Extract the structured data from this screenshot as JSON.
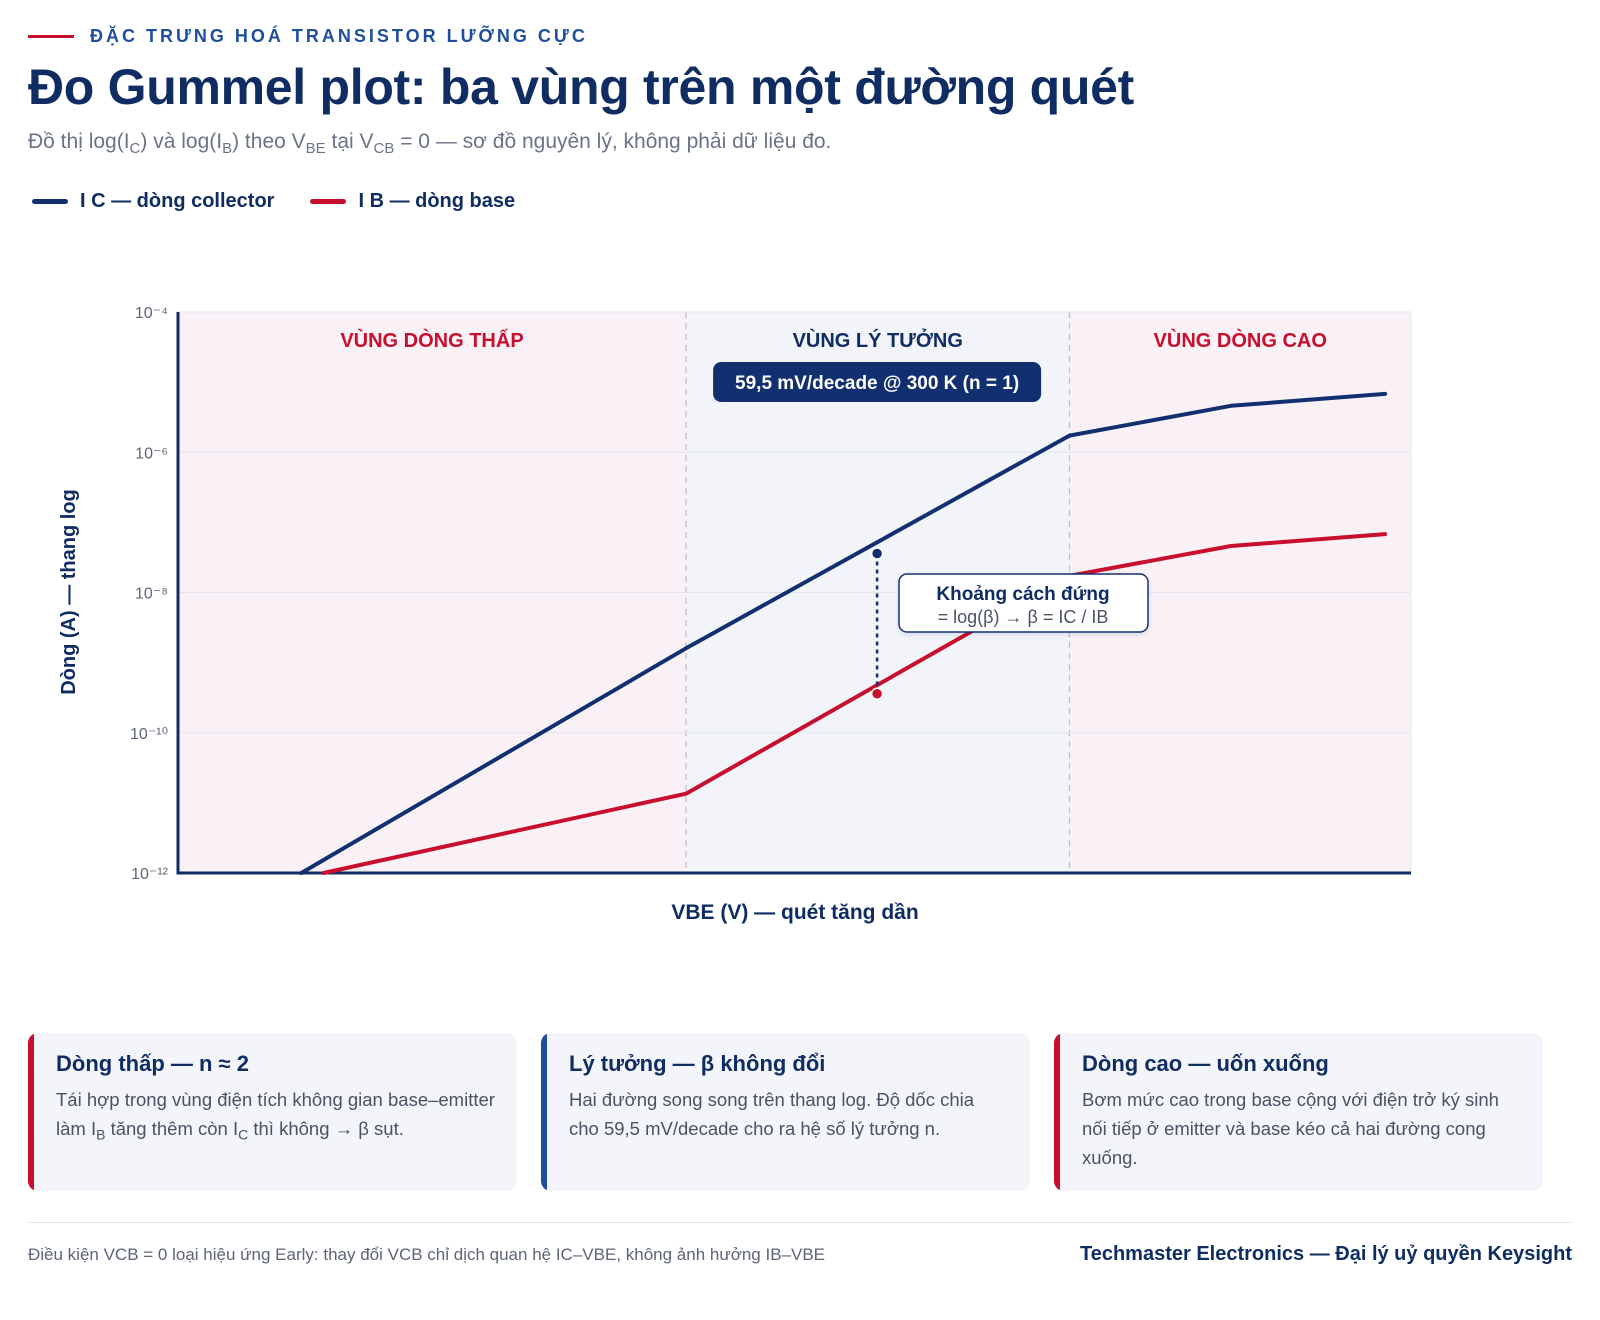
{
  "header": {
    "eyebrow": "ĐẶC TRƯNG HOÁ TRANSISTOR LƯỠNG CỰC",
    "title": "Đo Gummel plot: ba vùng trên một đường quét",
    "subtitle": {
      "p1": "Đồ thị log(I",
      "s1": "C",
      "p2": ") và log(I",
      "s2": "B",
      "p3": ") theo V",
      "s3": "BE",
      "p4": " tại V",
      "s4": "CB",
      "p5": " = 0 — sơ đồ nguyên lý, không phải dữ liệu đo."
    }
  },
  "legend": [
    {
      "label": "I C — dòng collector",
      "color": "#123070"
    },
    {
      "label": "I B — dòng base",
      "color": "#c8102e"
    }
  ],
  "chart_data": {
    "type": "line",
    "xlabel": "VBE (V) — quét tăng dần",
    "ylabel": "Dòng (A) — thang log",
    "y_scale": "log",
    "ylim": [
      1e-12,
      0.0001
    ],
    "y_ticks": [
      {
        "value": 0.0001,
        "label": "10⁻⁴"
      },
      {
        "value": 1e-06,
        "label": "10⁻⁶"
      },
      {
        "value": 1e-08,
        "label": "10⁻⁸"
      },
      {
        "value": 1e-10,
        "label": "10⁻¹⁰"
      },
      {
        "value": 1e-12,
        "label": "10⁻¹²"
      }
    ],
    "grid": true,
    "x_tick_labels": false,
    "regions": [
      {
        "label": "VÙNG DÒNG THẤP",
        "from": 0,
        "to": 0.412,
        "fill": "#f9f1f5",
        "label_color": "#c8102e"
      },
      {
        "label": "VÙNG LÝ TƯỞNG",
        "from": 0.412,
        "to": 0.723,
        "fill": "#f2f4fa",
        "label_color": "#0f2d63"
      },
      {
        "label": "VÙNG DÒNG CAO",
        "from": 0.723,
        "to": 1,
        "fill": "#f9f1f5",
        "label_color": "#c8102e"
      }
    ],
    "series": [
      {
        "name": "I C — dòng collector",
        "color": "#123070",
        "x": [
          0.1,
          0.412,
          0.723,
          0.854,
          0.979
        ],
        "y": [
          1e-12,
          1.6e-09,
          1.73e-06,
          4.6e-06,
          6.8e-06
        ]
      },
      {
        "name": "I B — dòng base",
        "color": "#c8102e",
        "x": [
          0.118,
          0.412,
          0.723,
          0.854,
          0.979
        ],
        "y": [
          1e-12,
          1.35e-11,
          1.73e-08,
          4.6e-08,
          6.8e-08
        ]
      }
    ],
    "markers": [
      {
        "x": 0.567,
        "y": 3.6e-08,
        "color": "#123070"
      },
      {
        "x": 0.567,
        "y": 3.6e-10,
        "color": "#c8102e"
      }
    ],
    "annotations": {
      "slope_badge": "59,5 mV/decade @ 300 K (n = 1)",
      "gap_title": "Khoảng cách đứng",
      "gap_text": "= log(β) → β = IC / IB"
    }
  },
  "cards": [
    {
      "title": "Dòng thấp — n ≈ 2",
      "color": "#c8102e",
      "b1": "Tái hợp trong vùng điện tích không gian base–emitter làm I",
      "s1": "B",
      "b2": " tăng thêm còn I",
      "s2": "C",
      "b3": " thì không → β sụt."
    },
    {
      "title": "Lý tưởng — β không đổi",
      "color": "#1f4e9c",
      "b1": "Hai đường song song trên thang log. Độ dốc chia cho 59,5 mV/decade cho ra hệ số lý tưởng n."
    },
    {
      "title": "Dòng cao — uốn xuống",
      "color": "#c8102e",
      "b1": "Bơm mức cao trong base cộng với điện trở ký sinh nối tiếp ở emitter và base kéo cả hai đường cong xuống."
    }
  ],
  "footer": {
    "note": "Điều kiện VCB = 0 loại hiệu ứng Early: thay đổi VCB chỉ dịch quan hệ IC–VBE, không ảnh hưởng IB–VBE",
    "brand": "Techmaster Electronics — Đại lý uỷ quyền Keysight"
  }
}
